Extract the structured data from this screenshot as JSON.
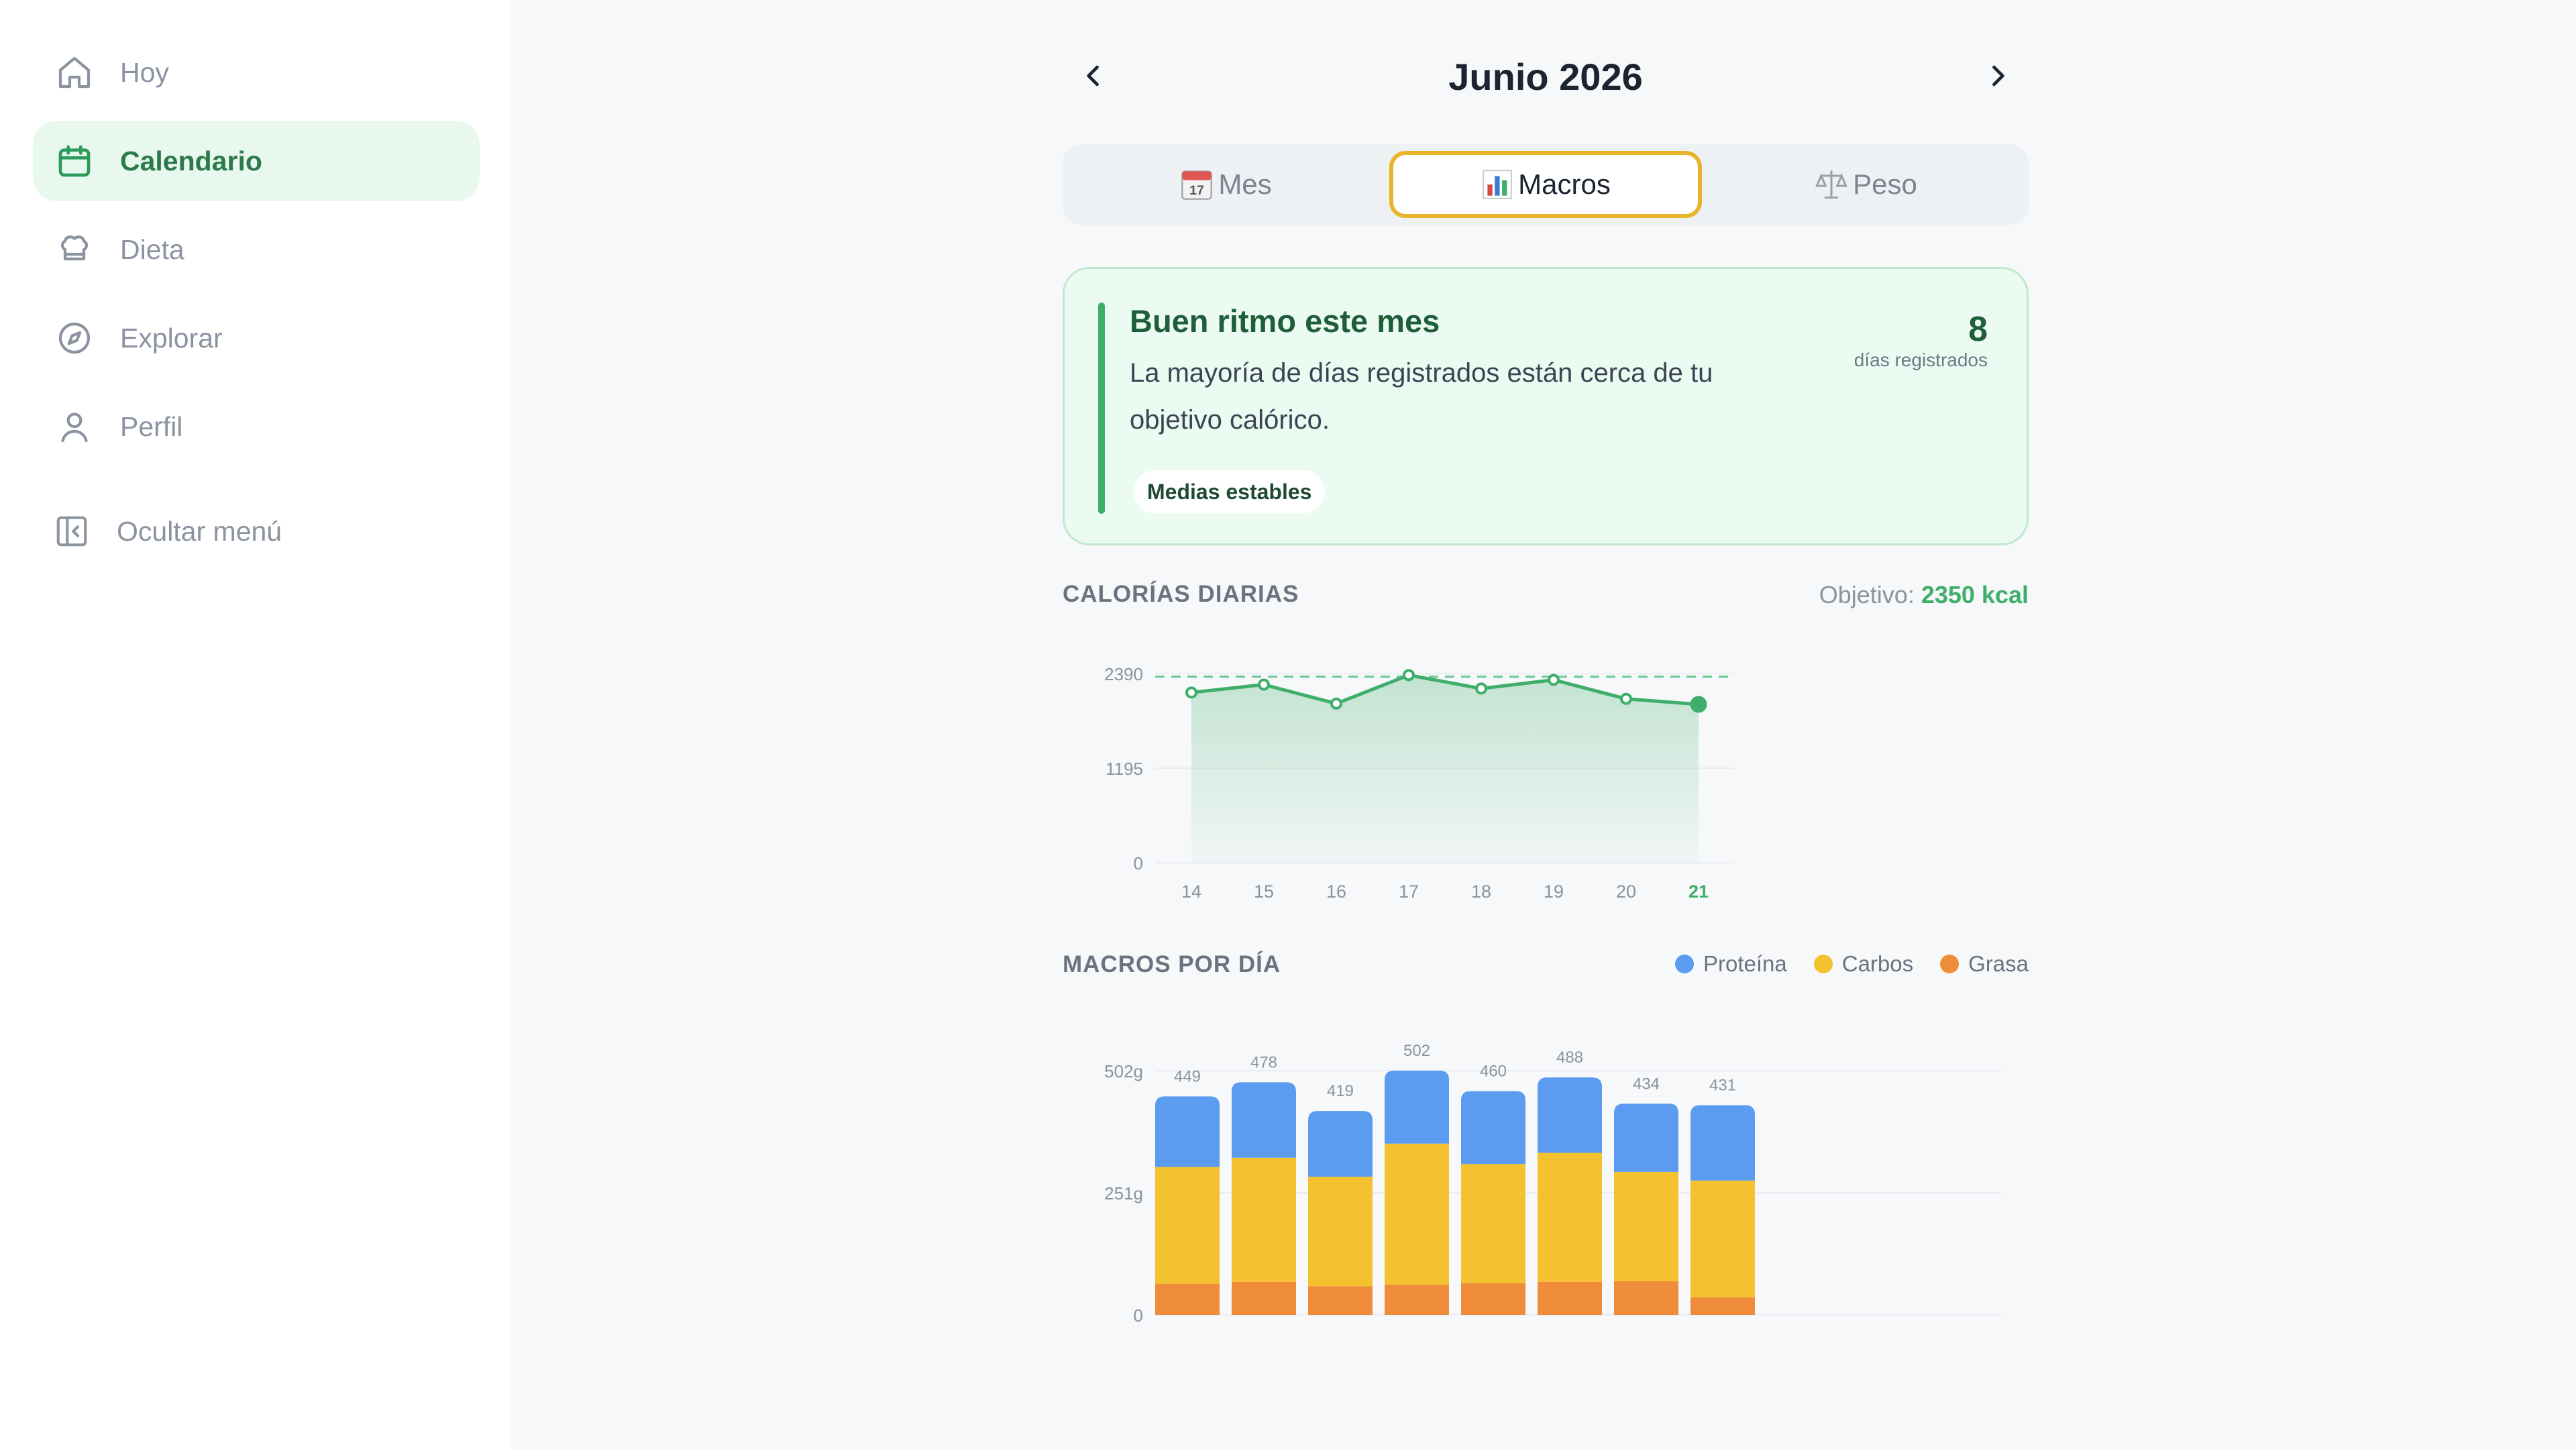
{
  "sidebar": {
    "items": [
      {
        "label": "Hoy",
        "icon": "home-icon"
      },
      {
        "label": "Calendario",
        "icon": "calendar-icon",
        "active": true
      },
      {
        "label": "Dieta",
        "icon": "chef-hat-icon"
      },
      {
        "label": "Explorar",
        "icon": "compass-icon"
      },
      {
        "label": "Perfil",
        "icon": "user-icon"
      }
    ],
    "collapse_label": "Ocultar menú"
  },
  "header": {
    "title": "Junio 2026",
    "prev_icon": "chevron-left-icon",
    "next_icon": "chevron-right-icon"
  },
  "tabs": [
    {
      "label": "Mes",
      "icon": "calendar-17-icon"
    },
    {
      "label": "Macros",
      "icon": "bar-chart-icon",
      "active": true
    },
    {
      "label": "Peso",
      "icon": "scale-icon"
    }
  ],
  "summary": {
    "title": "Buen ritmo este mes",
    "description": "La mayoría de días registrados están cerca de tu objetivo calórico.",
    "pill": "Medias estables",
    "stat_value": "8",
    "stat_label": "días registrados"
  },
  "calories": {
    "section_title": "CALORÍAS DIARIAS",
    "goal_prefix": "Objetivo:",
    "goal_value": "2350 kcal"
  },
  "macros": {
    "section_title": "MACROS POR DÍA",
    "legend": [
      {
        "label": "Proteína",
        "color": "#5b9cf0"
      },
      {
        "label": "Carbos",
        "color": "#f4c12f"
      },
      {
        "label": "Grasa",
        "color": "#ef8c3a"
      }
    ]
  },
  "colors": {
    "accent": "#3fae6a",
    "tab_active_border": "#e7b42b"
  },
  "chart_data": [
    {
      "type": "area",
      "title": "CALORÍAS DIARIAS",
      "categories": [
        "14",
        "15",
        "16",
        "17",
        "18",
        "19",
        "20",
        "21"
      ],
      "series": [
        {
          "values": [
            2150,
            2250,
            2010,
            2370,
            2200,
            2310,
            2070,
            2000
          ]
        }
      ],
      "target_line": 2350,
      "yticks": [
        "2390",
        "1195",
        "0"
      ],
      "ylim": [
        0,
        2390
      ],
      "highlight_category": "21",
      "grid": true
    },
    {
      "type": "bar",
      "stacked": true,
      "title": "MACROS POR DÍA",
      "categories": [
        "14",
        "15",
        "16",
        "17",
        "18",
        "19",
        "20",
        "21"
      ],
      "totals": [
        449,
        478,
        419,
        502,
        460,
        488,
        434,
        431
      ],
      "series": [
        {
          "name": "Proteína",
          "values": [
            145,
            155,
            135,
            150,
            150,
            155,
            140,
            155
          ]
        },
        {
          "name": "Carbos",
          "values": [
            240,
            255,
            225,
            290,
            245,
            265,
            225,
            240
          ]
        },
        {
          "name": "Grasa",
          "values": [
            64,
            68,
            59,
            62,
            65,
            68,
            69,
            36
          ]
        }
      ],
      "yticks": [
        "502g",
        "251g",
        "0"
      ],
      "ylim": [
        0,
        502
      ],
      "grid": true
    }
  ]
}
